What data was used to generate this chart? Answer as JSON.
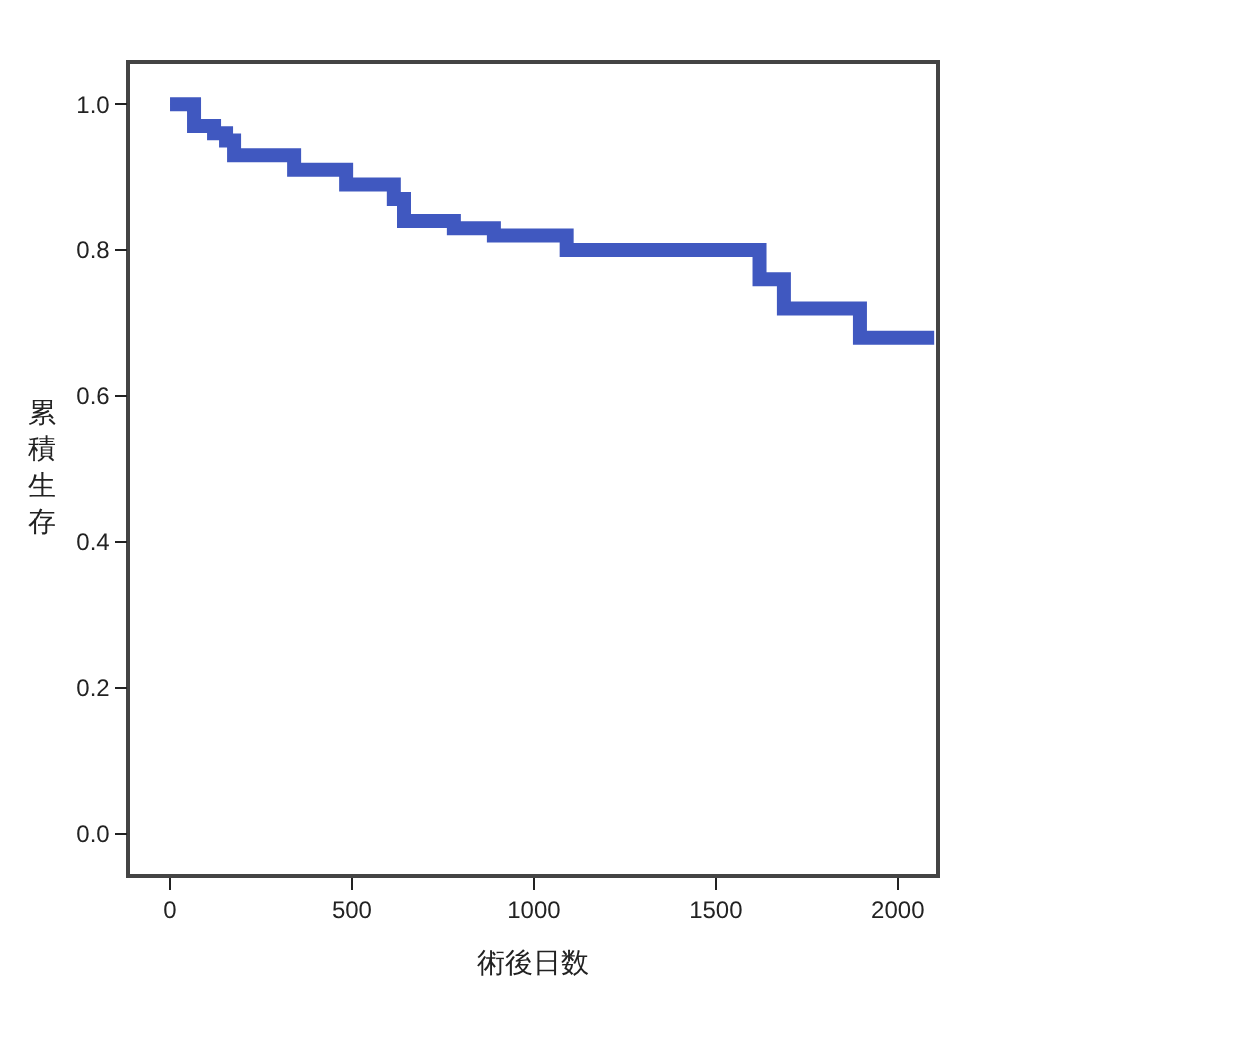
{
  "chart_data": {
    "type": "step",
    "xlabel": "術後日数",
    "ylabel": "累積生存",
    "x": [
      0,
      66,
      121,
      154,
      176,
      341,
      484,
      615,
      643,
      780,
      890,
      1090,
      1620,
      1687,
      1896,
      2100
    ],
    "series": [
      {
        "color": "#4058c0",
        "values": [
          1.0,
          0.97,
          0.96,
          0.95,
          0.93,
          0.91,
          0.89,
          0.87,
          0.84,
          0.83,
          0.82,
          0.8,
          0.76,
          0.72,
          0.68,
          0.68
        ]
      }
    ],
    "xlim": [
      -110,
      2105
    ],
    "ylim": [
      -0.055,
      1.055
    ],
    "xticks": [
      0,
      500,
      1000,
      1500,
      2000
    ],
    "yticks": [
      {
        "value": 0,
        "label": "0.0"
      },
      {
        "value": 0.2,
        "label": "0.2"
      },
      {
        "value": 0.4,
        "label": "0.4"
      },
      {
        "value": 0.6,
        "label": "0.6"
      },
      {
        "value": 0.8,
        "label": "0.8"
      },
      {
        "value": 1.0,
        "label": "1.0"
      }
    ],
    "line_style": "solid"
  }
}
